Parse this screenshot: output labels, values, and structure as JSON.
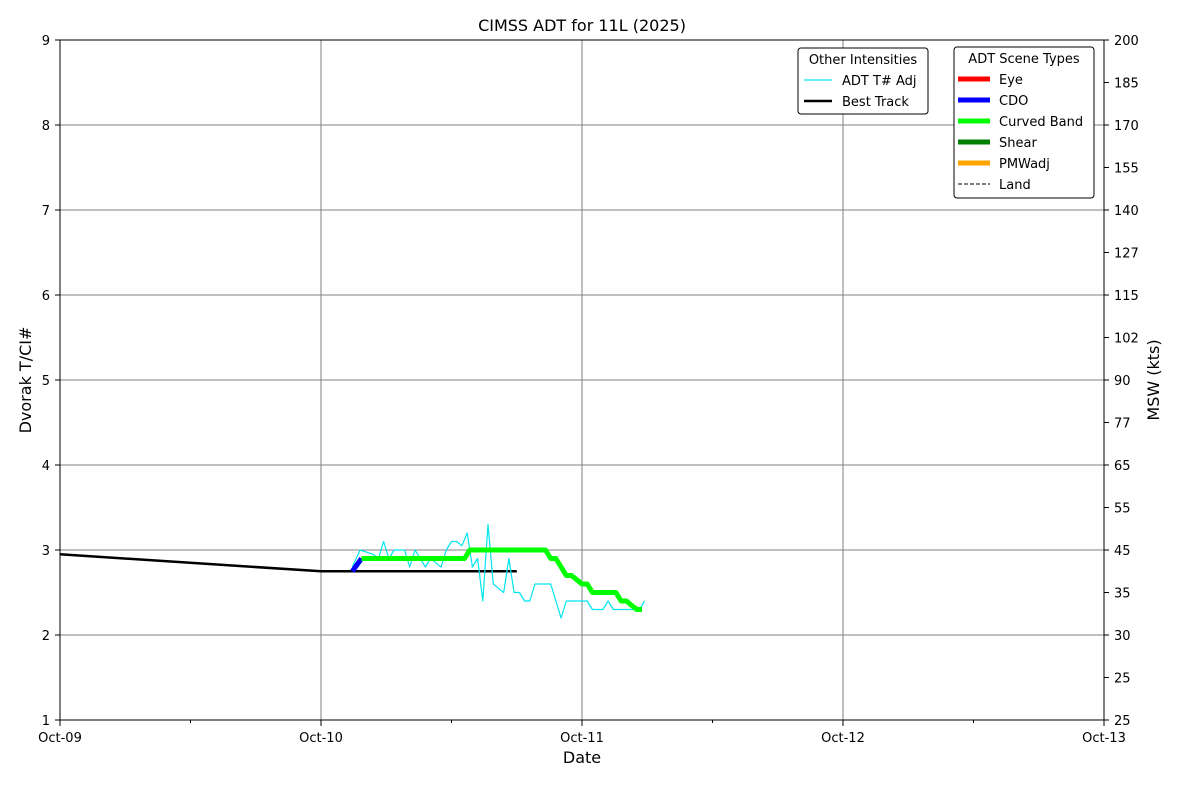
{
  "chart_data": {
    "type": "line",
    "title": "CIMSS ADT for 11L (2025)",
    "xlabel": "Date",
    "ylabel": "Dvorak T/CI#",
    "ylabel_right": "MSW (kts)",
    "x_ticks": [
      "Oct-09",
      "Oct-10",
      "Oct-11",
      "Oct-12",
      "Oct-13"
    ],
    "xlim": [
      0,
      4
    ],
    "ylim": [
      1,
      9
    ],
    "y_ticks": [
      "1",
      "2",
      "3",
      "4",
      "5",
      "6",
      "7",
      "8",
      "9"
    ],
    "right_ticks": [
      {
        "t": 1.0,
        "label": "25"
      },
      {
        "t": 1.5,
        "label": "25"
      },
      {
        "t": 2.0,
        "label": "30"
      },
      {
        "t": 2.5,
        "label": "35"
      },
      {
        "t": 3.0,
        "label": "45"
      },
      {
        "t": 3.5,
        "label": "55"
      },
      {
        "t": 4.0,
        "label": "65"
      },
      {
        "t": 4.5,
        "label": "77"
      },
      {
        "t": 5.0,
        "label": "90"
      },
      {
        "t": 5.5,
        "label": "102"
      },
      {
        "t": 6.0,
        "label": "115"
      },
      {
        "t": 6.5,
        "label": "127"
      },
      {
        "t": 7.0,
        "label": "140"
      },
      {
        "t": 7.5,
        "label": "155"
      },
      {
        "t": 8.0,
        "label": "170"
      },
      {
        "t": 8.5,
        "label": "185"
      },
      {
        "t": 9.0,
        "label": "200"
      }
    ],
    "grid": true,
    "legend_other": {
      "title": "Other Intensities",
      "placement": "top-right",
      "entries": [
        {
          "name": "ADT T# Adj",
          "color": "#00e5ee"
        },
        {
          "name": "Best Track",
          "color": "#000000"
        }
      ]
    },
    "legend_scene": {
      "title": "ADT Scene Types",
      "placement": "top-right",
      "entries": [
        {
          "name": "Eye",
          "color": "#ff0000",
          "style": "solid"
        },
        {
          "name": "CDO",
          "color": "#0000ff",
          "style": "solid"
        },
        {
          "name": "Curved Band",
          "color": "#00ff00",
          "style": "solid"
        },
        {
          "name": "Shear",
          "color": "#008000",
          "style": "solid"
        },
        {
          "name": "PMWadj",
          "color": "#ffa500",
          "style": "solid"
        },
        {
          "name": "Land",
          "color": "#000000",
          "style": "dashed"
        }
      ]
    },
    "series": [
      {
        "name": "Best Track",
        "color": "#000000",
        "x": [
          0.0,
          1.0,
          1.75
        ],
        "y": [
          2.95,
          2.75,
          2.75
        ]
      },
      {
        "name": "ADT T# Adj",
        "color": "#00e5ee",
        "x": [
          1.12,
          1.15,
          1.2,
          1.22,
          1.24,
          1.26,
          1.28,
          1.3,
          1.32,
          1.34,
          1.36,
          1.38,
          1.4,
          1.42,
          1.44,
          1.46,
          1.48,
          1.5,
          1.52,
          1.54,
          1.56,
          1.58,
          1.6,
          1.62,
          1.64,
          1.66,
          1.68,
          1.7,
          1.72,
          1.74,
          1.76,
          1.78,
          1.8,
          1.82,
          1.84,
          1.86,
          1.88,
          1.9,
          1.92,
          1.94,
          1.96,
          1.98,
          2.0,
          2.02,
          2.04,
          2.06,
          2.08,
          2.1,
          2.12,
          2.14,
          2.16,
          2.18,
          2.2,
          2.22,
          2.24
        ],
        "y": [
          2.8,
          3.0,
          2.95,
          2.9,
          3.1,
          2.9,
          3.0,
          3.0,
          3.0,
          2.8,
          3.0,
          2.9,
          2.8,
          2.9,
          2.85,
          2.8,
          3.0,
          3.1,
          3.1,
          3.05,
          3.2,
          2.8,
          2.9,
          2.4,
          3.3,
          2.6,
          2.55,
          2.5,
          2.9,
          2.5,
          2.5,
          2.4,
          2.4,
          2.6,
          2.6,
          2.6,
          2.6,
          2.4,
          2.2,
          2.4,
          2.4,
          2.4,
          2.4,
          2.4,
          2.3,
          2.3,
          2.3,
          2.4,
          2.3,
          2.3,
          2.3,
          2.3,
          2.3,
          2.3,
          2.4
        ]
      }
    ],
    "scene_segments": [
      {
        "scene": "CDO",
        "color": "#0000ff",
        "x": [
          1.12,
          1.155
        ],
        "y": [
          2.75,
          2.9
        ]
      },
      {
        "scene": "Curved Band",
        "color": "#00ff00",
        "x": [
          1.155,
          1.2,
          1.3,
          1.4,
          1.5,
          1.55,
          1.57,
          1.6,
          1.7,
          1.8,
          1.86,
          1.88,
          1.9,
          1.92,
          1.94,
          1.96,
          1.98,
          2.0,
          2.02,
          2.04,
          2.06,
          2.1,
          2.13,
          2.15,
          2.17,
          2.19,
          2.21,
          2.23
        ],
        "y": [
          2.9,
          2.9,
          2.9,
          2.9,
          2.9,
          2.9,
          3.0,
          3.0,
          3.0,
          3.0,
          3.0,
          2.9,
          2.9,
          2.8,
          2.7,
          2.7,
          2.65,
          2.6,
          2.6,
          2.5,
          2.5,
          2.5,
          2.5,
          2.4,
          2.4,
          2.35,
          2.3,
          2.3
        ]
      }
    ]
  }
}
